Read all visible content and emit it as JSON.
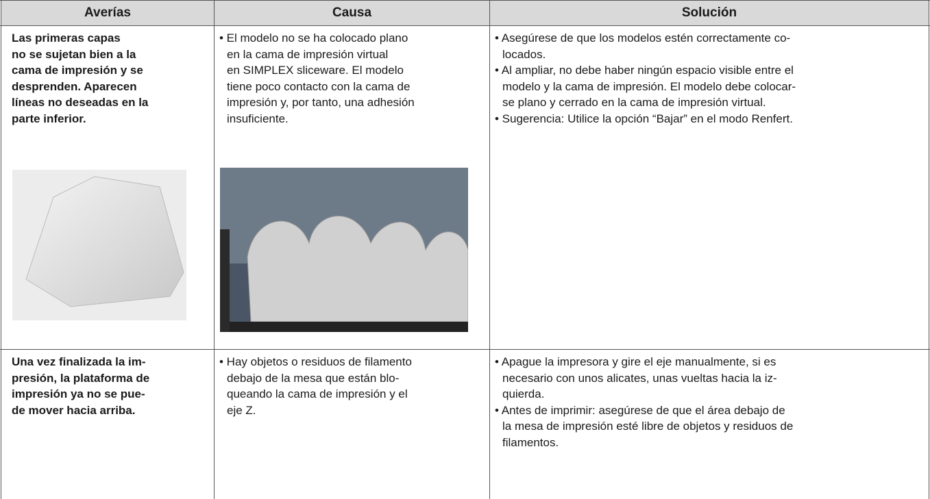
{
  "table": {
    "header": [
      "Averías",
      "Causa",
      "Solución"
    ],
    "rows": [
      {
        "fault": [
          "Las primeras capas",
          "no se sujetan bien a la",
          "cama de impresión y se",
          "desprenden. Aparecen",
          "líneas no deseadas en la",
          "parte inferior."
        ],
        "cause": [
          [
            "• El modelo no se ha colocado plano",
            "en la cama de impresión virtual",
            "en SIMPLEX sliceware. El modelo",
            "tiene poco contacto con la cama de",
            "impresión y, por tanto, una adhesión",
            "insuficiente."
          ]
        ],
        "solution": [
          [
            "• Asegúrese de que los modelos estén correctamente co-",
            "locados."
          ],
          [
            "• Al ampliar, no debe haber ningún espacio visible entre el",
            "modelo y la cama de impresión. El modelo debe colocar-",
            "se plano y cerrado en la cama de impresión virtual."
          ],
          [
            "• Sugerencia: Utilice la opción “Bajar” en el modo Renfert."
          ]
        ]
      },
      {
        "fault": [
          "Una vez finalizada la im-",
          "presión, la plataforma de",
          "impresión ya no se pue-",
          "de mover hacia arriba."
        ],
        "cause": [
          [
            "• Hay objetos o residuos de filamento",
            "debajo de la mesa que están blo-",
            "queando la cama de impresión y el",
            "eje Z."
          ]
        ],
        "solution": [
          [
            "• Apague la impresora y gire el eje manualmente, si es",
            "necesario con unos alicates, unas vueltas hacia la iz-",
            "quierda."
          ],
          [
            "• Antes de imprimir: asegúrese de que el área debajo de",
            "la mesa de impresión esté libre de objetos y residuos de",
            "filamentos."
          ]
        ]
      }
    ]
  }
}
